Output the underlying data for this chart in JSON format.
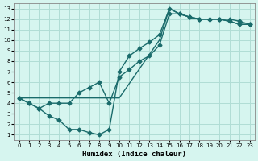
{
  "xlabel": "Humidex (Indice chaleur)",
  "background_color": "#d6f5ef",
  "grid_color": "#b0ddd5",
  "line_color": "#1a6b6b",
  "xlim": [
    -0.5,
    23.5
  ],
  "ylim": [
    0.5,
    13.5
  ],
  "xticks": [
    0,
    1,
    2,
    3,
    4,
    5,
    6,
    7,
    8,
    9,
    10,
    11,
    12,
    13,
    14,
    15,
    16,
    17,
    18,
    19,
    20,
    21,
    22,
    23
  ],
  "yticks": [
    1,
    2,
    3,
    4,
    5,
    6,
    7,
    8,
    9,
    10,
    11,
    12,
    13
  ],
  "line1_x": [
    0,
    1,
    2,
    3,
    4,
    5,
    6,
    7,
    8,
    9,
    10,
    11,
    12,
    13,
    14,
    15,
    16,
    17,
    18,
    19,
    20,
    21,
    22,
    23
  ],
  "line1_y": [
    4.5,
    4.0,
    3.5,
    2.8,
    2.4,
    1.5,
    1.5,
    1.2,
    1.0,
    1.5,
    7.0,
    8.5,
    9.2,
    9.8,
    10.5,
    13.0,
    12.5,
    12.2,
    12.0,
    12.0,
    12.0,
    12.0,
    11.8,
    11.5
  ],
  "line2_x": [
    0,
    1,
    2,
    3,
    4,
    5,
    6,
    7,
    8,
    9,
    10,
    11,
    12,
    13,
    14,
    15,
    16,
    17,
    18,
    19,
    20,
    21,
    22,
    23
  ],
  "line2_y": [
    4.5,
    4.0,
    3.5,
    4.0,
    4.0,
    4.0,
    5.0,
    5.5,
    6.0,
    4.0,
    6.5,
    7.2,
    8.0,
    8.5,
    9.5,
    12.5,
    12.5,
    12.2,
    12.0,
    12.0,
    12.0,
    11.8,
    11.5,
    11.5
  ],
  "line3_x": [
    0,
    9,
    10,
    14,
    15,
    16,
    17,
    18,
    19,
    20,
    21,
    22,
    23
  ],
  "line3_y": [
    4.5,
    4.5,
    4.5,
    10.0,
    13.0,
    12.5,
    12.2,
    12.0,
    12.0,
    12.0,
    11.8,
    11.5,
    11.5
  ],
  "marker": "D",
  "markersize": 2.5,
  "linewidth": 1.0
}
